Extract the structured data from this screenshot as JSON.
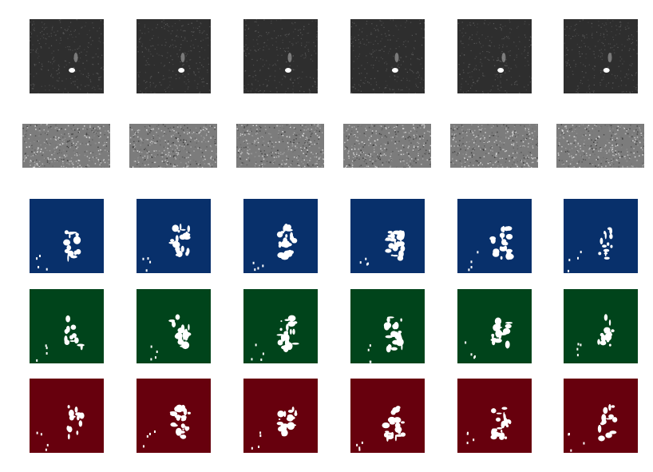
{
  "figure": {
    "rows": [
      {
        "kind": "grayscale-frame",
        "palette": {
          "bg": "#2e2e2e",
          "noise": "#6a6a6a"
        }
      },
      {
        "kind": "grayscale-strip",
        "palette": {
          "bg": "#7c7c7c",
          "noise": "#c8c8c8"
        }
      },
      {
        "kind": "mask",
        "palette": {
          "bg": "#08306b",
          "fg": "#ffffff"
        }
      },
      {
        "kind": "mask",
        "palette": {
          "bg": "#00441b",
          "fg": "#ffffff"
        }
      },
      {
        "kind": "mask",
        "palette": {
          "bg": "#67000d",
          "fg": "#ffffff"
        }
      }
    ],
    "columns": 6
  }
}
